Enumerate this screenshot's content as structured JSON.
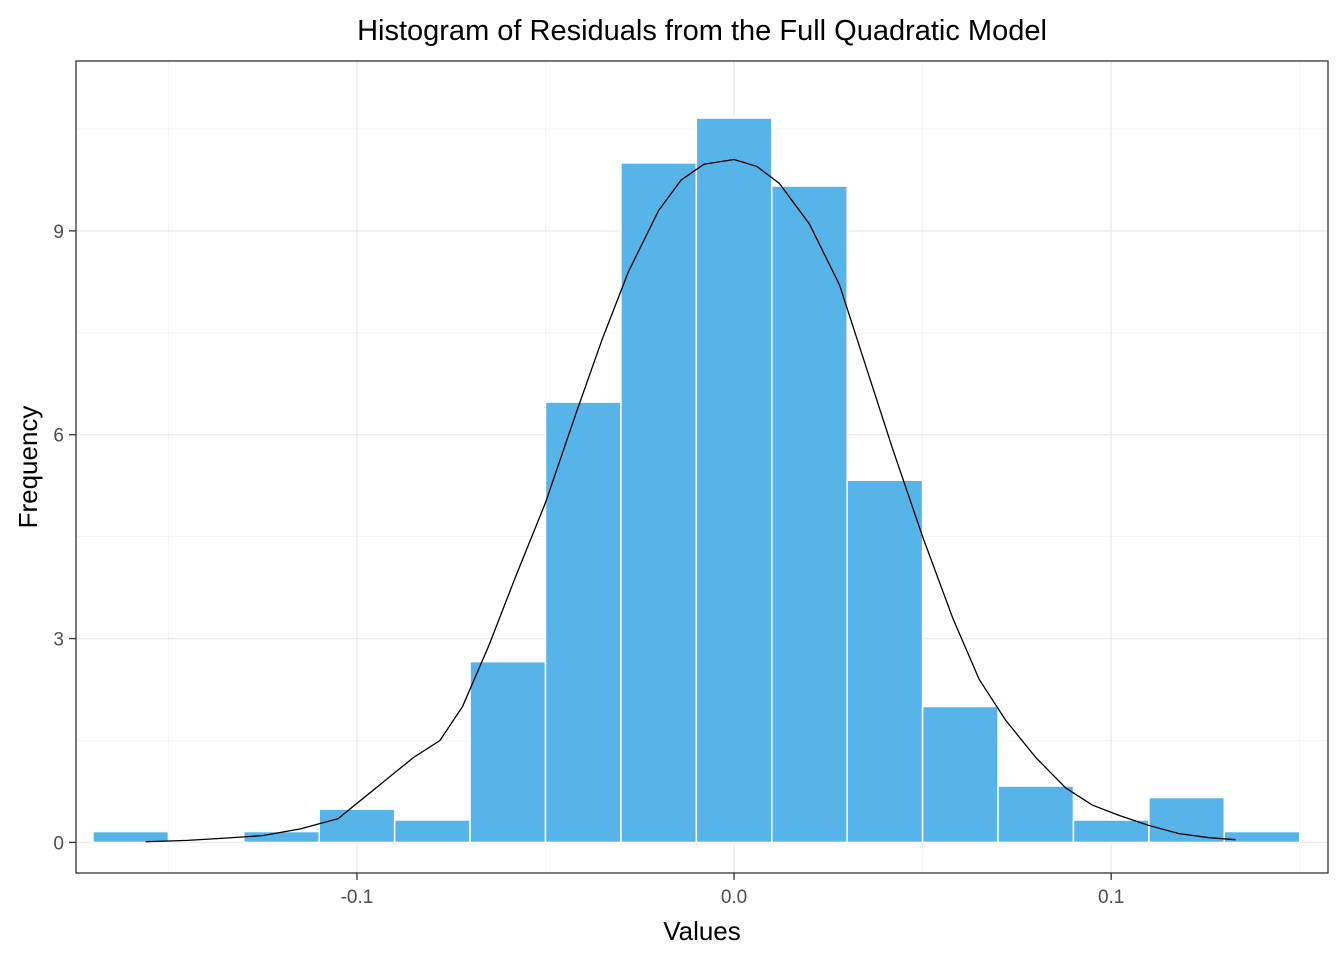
{
  "chart_data": {
    "type": "bar",
    "title": "Histogram of Residuals from the Full Quadratic Model",
    "xlabel": "Values",
    "ylabel": "Frequency",
    "xlim": [
      -0.1745,
      0.1575
    ],
    "ylim": [
      -0.45,
      11.5
    ],
    "x_ticks": [
      -0.1,
      0.0,
      0.1
    ],
    "x_tick_labels": [
      "-0.1",
      "0.0",
      "0.1"
    ],
    "y_ticks": [
      0,
      3,
      6,
      9
    ],
    "y_tick_labels": [
      "0",
      "3",
      "6",
      "9"
    ],
    "bar_color": "#56B4E9",
    "bins": {
      "start": -0.17,
      "width": 0.02,
      "values": [
        0.16,
        0,
        0.16,
        0.49,
        0.33,
        2.66,
        6.48,
        10.0,
        10.66,
        9.66,
        5.33,
        2.0,
        0.83,
        0.33,
        0.66,
        0.16
      ]
    },
    "density_curve": {
      "x": [
        -0.156,
        -0.145,
        -0.136,
        -0.125,
        -0.115,
        -0.105,
        -0.095,
        -0.085,
        -0.078,
        -0.072,
        -0.065,
        -0.058,
        -0.05,
        -0.042,
        -0.035,
        -0.028,
        -0.02,
        -0.014,
        -0.008,
        0.0,
        0.006,
        0.012,
        0.02,
        0.028,
        0.035,
        0.042,
        0.05,
        0.058,
        0.065,
        0.072,
        0.08,
        0.088,
        0.095,
        0.102,
        0.11,
        0.118,
        0.126,
        0.133
      ],
      "y": [
        0.01,
        0.03,
        0.06,
        0.1,
        0.2,
        0.35,
        0.8,
        1.25,
        1.5,
        2.0,
        2.9,
        3.9,
        5.0,
        6.3,
        7.4,
        8.4,
        9.3,
        9.75,
        9.98,
        10.05,
        9.95,
        9.7,
        9.1,
        8.2,
        7.0,
        5.8,
        4.5,
        3.3,
        2.4,
        1.8,
        1.25,
        0.8,
        0.55,
        0.4,
        0.25,
        0.13,
        0.07,
        0.04
      ]
    }
  }
}
